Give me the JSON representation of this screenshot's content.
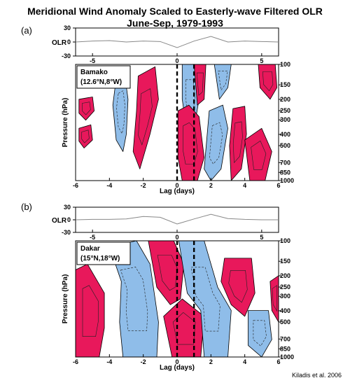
{
  "figure": {
    "title_line1": "Meridional Wind Anomaly Scaled to Easterly-wave Filtered OLR",
    "title_line2": "June-Sep, 1979-1993",
    "credit": "Kiladis et al. 2006",
    "colors": {
      "positive": "#e8185b",
      "negative": "#8fbde9",
      "contour": "#707070"
    }
  },
  "chart_data": [
    {
      "type": "contour",
      "panel_label": "(a)",
      "station": "Bamako",
      "station_coords": "(12.6°N,8°W)",
      "xlabel": "Lag (days)",
      "ylabel": "Pressure (hPa)",
      "xlim": [
        -6,
        6
      ],
      "x_ticks": [
        -6,
        -4,
        -2,
        0,
        2,
        4,
        6
      ],
      "pressure_levels": [
        100,
        150,
        200,
        250,
        300,
        400,
        500,
        700,
        850,
        1000
      ],
      "reference_lag_lines": [
        0,
        1
      ],
      "olr_series": {
        "label": "OLR",
        "ylim": [
          -30,
          30
        ],
        "y_ticks": [
          30,
          0,
          -30
        ],
        "x_ticks": [
          -5,
          0,
          5
        ],
        "lag": [
          -6,
          -5,
          -4,
          -3,
          -2,
          -1,
          0,
          1,
          2,
          3,
          4,
          5,
          6
        ],
        "values": [
          0,
          2,
          3,
          0,
          2,
          1,
          -12,
          2,
          12,
          0,
          2,
          1,
          0
        ]
      }
    },
    {
      "type": "contour",
      "panel_label": "(b)",
      "station": "Dakar",
      "station_coords": "(15°N,18°W)",
      "xlabel": "Lag (days)",
      "ylabel": "Pressure (hPa)",
      "xlim": [
        -6,
        6
      ],
      "x_ticks": [
        -6,
        -4,
        -2,
        0,
        2,
        4,
        6
      ],
      "pressure_levels": [
        100,
        150,
        200,
        250,
        300,
        400,
        500,
        700,
        850,
        1000
      ],
      "reference_lag_lines": [
        0,
        1
      ],
      "olr_series": {
        "label": "OLR",
        "ylim": [
          -30,
          30
        ],
        "y_ticks": [
          30,
          0,
          -30
        ],
        "x_ticks": [
          -5,
          0,
          5
        ],
        "lag": [
          -6,
          -5,
          -4,
          -3,
          -2,
          -1,
          0,
          1,
          2,
          3,
          4,
          5,
          6
        ],
        "values": [
          0,
          1,
          1,
          2,
          8,
          6,
          -10,
          2,
          13,
          3,
          1,
          0,
          0
        ]
      }
    }
  ]
}
